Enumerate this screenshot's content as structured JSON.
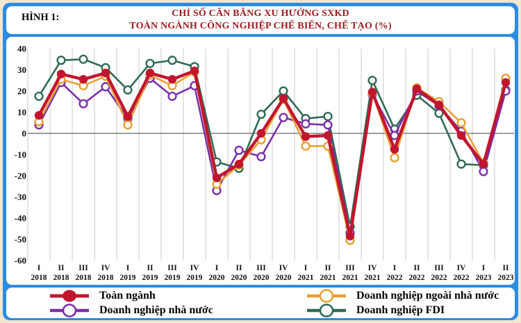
{
  "figure_label": "HÌNH 1:",
  "title_line1": "CHỈ SỐ CÂN BẰNG XU HƯỚNG SXKD",
  "title_line2": "TOÀN NGÀNH CÔNG NGHIỆP CHẾ BIẾN, CHẾ TẠO (%)",
  "palette": {
    "frame_blue": "#2B8CE2",
    "outer_cream": "#F1E6D0",
    "title_red": "#9B1B1E",
    "grid_line": "#C9C9C9",
    "zero_line": "#7F7F7F",
    "tick_text": "#111111"
  },
  "chart_data": {
    "type": "line",
    "title": "Chỉ số cân bằng xu hướng SXKD toàn ngành công nghiệp chế biến, chế tạo (%)",
    "categories": [
      "I 2018",
      "II 2018",
      "III 2018",
      "IV 2018",
      "I 2019",
      "II 2019",
      "III 2019",
      "IV 2019",
      "I 2020",
      "II 2020",
      "III 2020",
      "IV 2020",
      "I 2021",
      "II 2021",
      "III 2021",
      "IV 2021",
      "I 2022",
      "II 2022",
      "III 2022",
      "IV 2022",
      "I 2023",
      "II 2023"
    ],
    "ylim": [
      -60,
      40
    ],
    "ytick_step": 10,
    "grid": "vertical-only",
    "zero_line": true,
    "legend_position": "bottom",
    "series": [
      {
        "name": "Toàn ngành",
        "color": "#C2152E",
        "marker": "filled",
        "values": [
          8.5,
          28,
          25.5,
          28.5,
          8,
          28.5,
          25.5,
          29.5,
          -21,
          -14.5,
          0,
          16.5,
          -1.5,
          -1,
          -48.5,
          19.5,
          -7.5,
          21,
          13.5,
          -1,
          -14.5,
          24
        ]
      },
      {
        "name": "Doanh nghiệp nhà nước",
        "color": "#7B2FA8",
        "marker": "open",
        "values": [
          4,
          24,
          14,
          22,
          7,
          26,
          17.5,
          22.5,
          -27,
          -8,
          -11,
          7.5,
          4.5,
          4,
          -47,
          18.5,
          -1,
          20,
          13,
          1,
          -18,
          20
        ]
      },
      {
        "name": "Doanh nghiệp ngoài nhà nước",
        "color": "#E8A033",
        "marker": "open",
        "values": [
          5.5,
          25.5,
          22.5,
          27,
          4,
          27.5,
          22.5,
          29,
          -24,
          -15,
          -3,
          16,
          -6,
          -6,
          -50.5,
          19,
          -11.5,
          21.5,
          15,
          5,
          -14,
          26
        ]
      },
      {
        "name": "Doanh nghiệp FDI",
        "color": "#2E6B52",
        "marker": "open",
        "values": [
          17.5,
          34.5,
          35,
          31,
          20.5,
          33,
          34.5,
          31.5,
          -13.5,
          -16.5,
          9,
          20,
          7,
          8,
          -44,
          25,
          2,
          18,
          9.5,
          -14.5,
          -15,
          20.5
        ]
      }
    ]
  }
}
